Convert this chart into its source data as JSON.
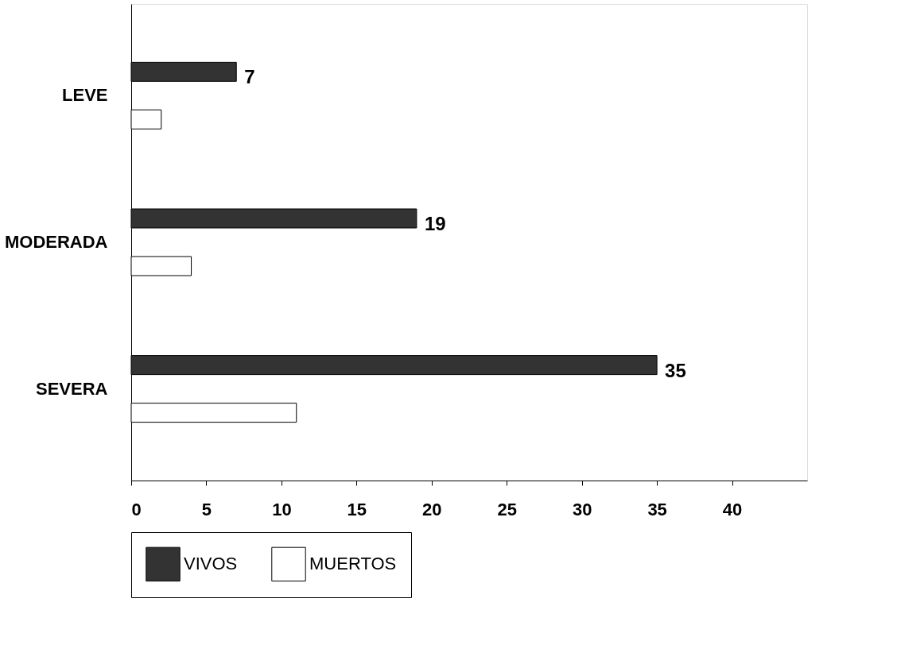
{
  "chart_data": {
    "type": "bar",
    "orientation": "horizontal",
    "categories": [
      "LEVE",
      "MODERADA",
      "SEVERA"
    ],
    "series": [
      {
        "name": "VIVOS",
        "color": "#333333",
        "values": [
          7,
          19,
          35
        ],
        "value_labels": [
          "7",
          "19",
          "35"
        ]
      },
      {
        "name": "MUERTOS",
        "color": "#ffffff",
        "values": [
          2,
          4,
          11
        ]
      }
    ],
    "xlim": [
      0,
      45
    ],
    "xticks": [
      0,
      5,
      10,
      15,
      20,
      25,
      30,
      35,
      40
    ],
    "grid": false,
    "legend": "bottom"
  }
}
